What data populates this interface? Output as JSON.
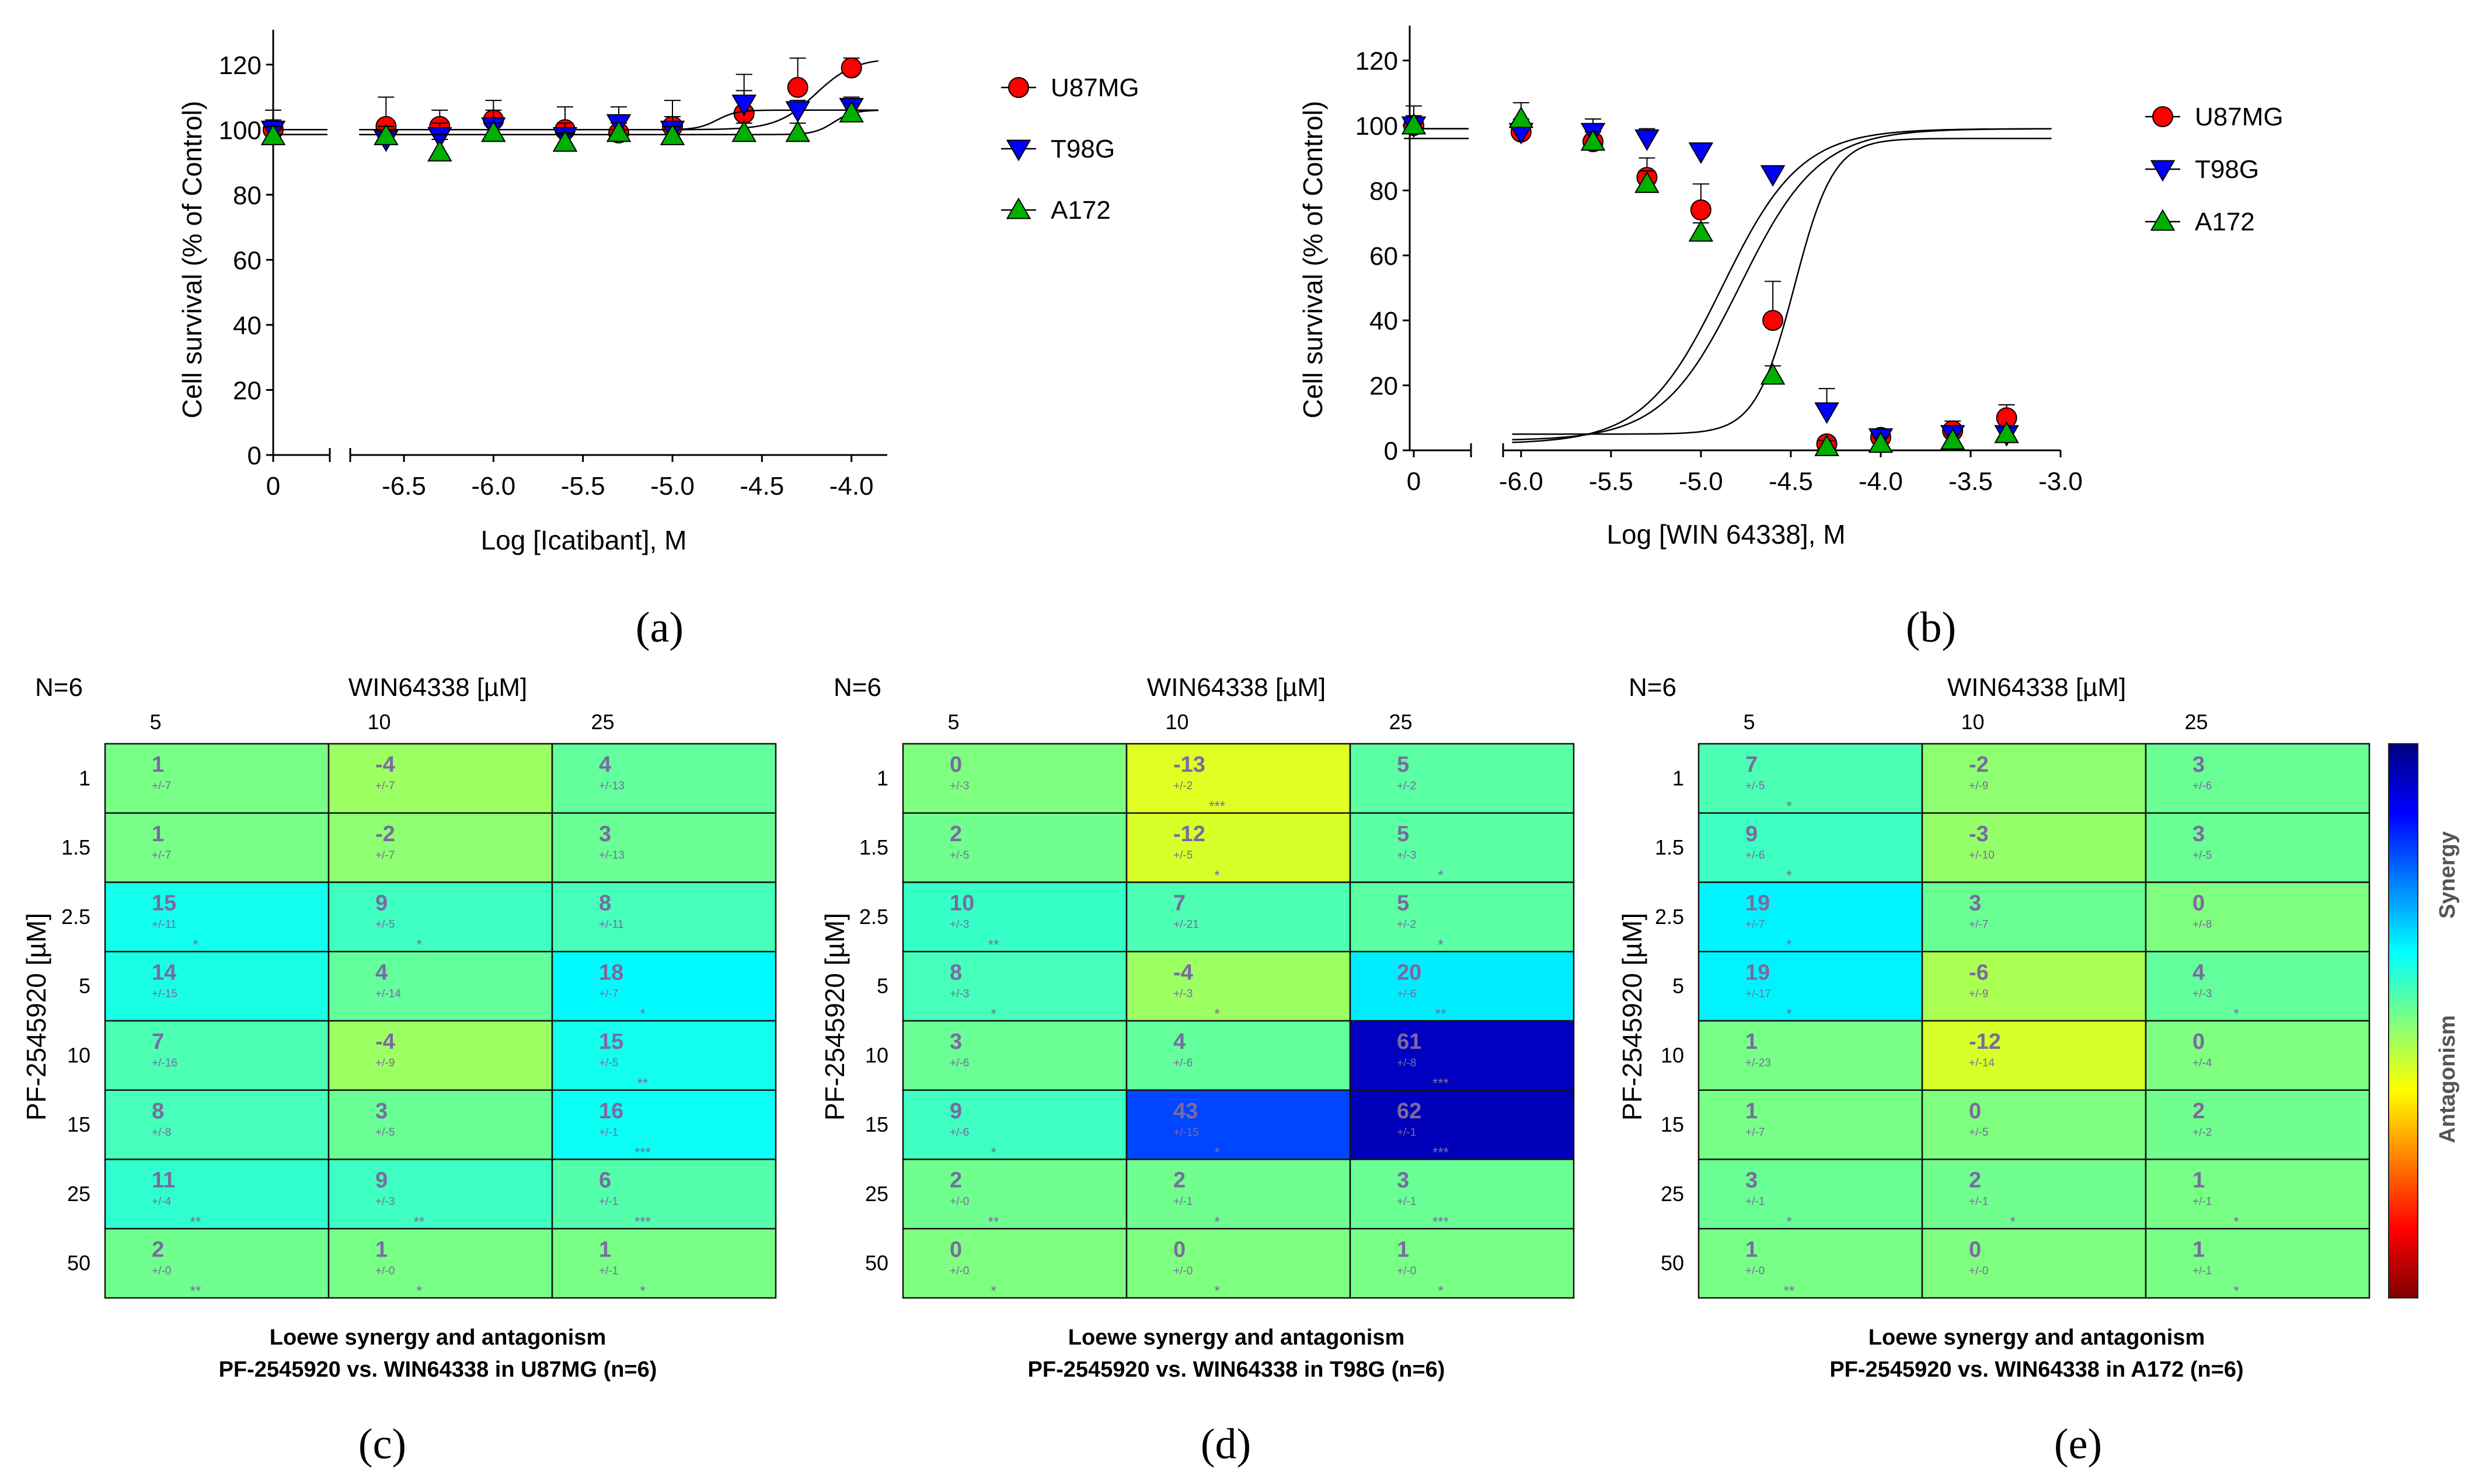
{
  "figure": {
    "panel_labels": [
      "(a)",
      "(b)",
      "(c)",
      "(d)",
      "(e)"
    ],
    "colors": {
      "U87MG": "#ff0000",
      "T98G": "#0000ff",
      "A172": "#00b000"
    }
  },
  "chart_data": [
    {
      "panel": "a",
      "type": "line",
      "title": "",
      "xlabel": "Log [Icatibant], M",
      "ylabel": "Cell survival (% of Control)",
      "ylim": [
        0,
        130
      ],
      "yticks": [
        0,
        20,
        40,
        60,
        80,
        100,
        120
      ],
      "xlim": [
        -6.8,
        -3.8
      ],
      "xticks": [
        -6.5,
        -6.0,
        -5.5,
        -5.0,
        -4.5,
        -4.0
      ],
      "xtick_labels": [
        "-6.5",
        "-6.0",
        "-5.5",
        "-5.0",
        "-4.5",
        "-4.0"
      ],
      "control_label": "0",
      "legend_position": "right",
      "series": [
        {
          "name": "U87MG",
          "marker": "circle",
          "control": 100,
          "control_err": 6,
          "x": [
            -6.6,
            -6.3,
            -6.0,
            -5.6,
            -5.3,
            -5.0,
            -4.6,
            -4.3,
            -4.0
          ],
          "y": [
            101,
            101,
            103,
            100,
            99,
            101,
            105,
            113,
            119
          ],
          "err": [
            9,
            5,
            6,
            7,
            4,
            8,
            12,
            9,
            3
          ],
          "fit": {
            "bottom": 100,
            "top": 122,
            "logec50": -4.2,
            "hill": 4
          }
        },
        {
          "name": "T98G",
          "marker": "triangle-down",
          "control": 100,
          "control_err": 3,
          "x": [
            -6.6,
            -6.3,
            -6.0,
            -5.6,
            -5.3,
            -5.0,
            -4.6,
            -4.3,
            -4.0
          ],
          "y": [
            97,
            98,
            101,
            98,
            102,
            100,
            108,
            106,
            107
          ],
          "err": [
            4,
            4,
            5,
            4,
            5,
            4,
            4,
            3,
            3
          ],
          "fit": {
            "bottom": 100,
            "top": 106,
            "logec50": -4.75,
            "hill": 8
          }
        },
        {
          "name": "A172",
          "marker": "triangle-up",
          "control": 98,
          "control_err": 3,
          "x": [
            -6.6,
            -6.3,
            -6.0,
            -5.6,
            -5.3,
            -5.0,
            -4.6,
            -4.3,
            -4.0
          ],
          "y": [
            98,
            93,
            99,
            96,
            99,
            98,
            99,
            99,
            105
          ],
          "err": [
            3,
            4,
            3,
            3,
            3,
            3,
            3,
            3,
            3
          ],
          "fit": {
            "bottom": 98.5,
            "top": 106,
            "logec50": -4.1,
            "hill": 8
          }
        }
      ]
    },
    {
      "panel": "b",
      "type": "line",
      "title": "",
      "xlabel": "Log [WIN 64338], M",
      "ylabel": "Cell survival (% of Control)",
      "ylim": [
        0,
        130
      ],
      "yticks": [
        0,
        20,
        40,
        60,
        80,
        100,
        120
      ],
      "xlim": [
        -6.1,
        -3.0
      ],
      "xticks": [
        -6.0,
        -5.5,
        -5.0,
        -4.5,
        -4.0,
        -3.5,
        -3.0
      ],
      "xtick_labels": [
        "-6.0",
        "-5.5",
        "-5.0",
        "-4.5",
        "-4.0",
        "-3.5",
        "-3.0"
      ],
      "control_label": "0",
      "legend_position": "right",
      "series": [
        {
          "name": "U87MG",
          "marker": "circle",
          "control": 100,
          "control_err": 6,
          "x": [
            -6.0,
            -5.6,
            -5.3,
            -5.0,
            -4.6,
            -4.3,
            -4.0,
            -3.6,
            -3.3
          ],
          "y": [
            98,
            95,
            84,
            74,
            40,
            2,
            4,
            6,
            10
          ],
          "err": [
            4,
            5,
            6,
            8,
            12,
            2,
            2,
            3,
            4
          ],
          "fit": {
            "bottom": 3,
            "top": 99,
            "logec50": -4.78,
            "hill": 2
          }
        },
        {
          "name": "T98G",
          "marker": "triangle-down",
          "control": 100,
          "control_err": 2,
          "x": [
            -6.0,
            -5.6,
            -5.3,
            -5.0,
            -4.6,
            -4.3,
            -4.0,
            -3.6,
            -3.3
          ],
          "y": [
            98,
            98,
            96,
            92,
            85,
            12,
            4,
            5,
            5
          ],
          "err": [
            3,
            4,
            3,
            2,
            2,
            7,
            2,
            2,
            2
          ],
          "fit": {
            "bottom": 5,
            "top": 96,
            "logec50": -4.48,
            "hill": 4
          }
        },
        {
          "name": "A172",
          "marker": "triangle-up",
          "control": 100,
          "control_err": 3,
          "x": [
            -6.0,
            -5.6,
            -5.3,
            -5.0,
            -4.6,
            -4.3,
            -4.0,
            -3.6,
            -3.3
          ],
          "y": [
            102,
            95,
            82,
            67,
            23,
            1,
            2,
            3,
            5
          ],
          "err": [
            5,
            3,
            4,
            3,
            3,
            2,
            2,
            2,
            2
          ],
          "fit": {
            "bottom": 2,
            "top": 99,
            "logec50": -4.88,
            "hill": 2
          }
        }
      ]
    },
    {
      "panel": "c",
      "type": "heatmap",
      "n_label": "N=6",
      "col_title": "WIN64338 [µM]",
      "row_title": "PF-2545920 [µM]",
      "cols": [
        "5",
        "10",
        "25"
      ],
      "rows": [
        "1",
        "1.5",
        "2.5",
        "5",
        "10",
        "15",
        "25",
        "50"
      ],
      "caption": [
        "Loewe synergy and antagonism",
        "PF-2545920 vs. WIN64338 in U87MG (n=6)"
      ],
      "values": [
        [
          1,
          -4,
          4
        ],
        [
          1,
          -2,
          3
        ],
        [
          15,
          9,
          8
        ],
        [
          14,
          4,
          18
        ],
        [
          7,
          -4,
          15
        ],
        [
          8,
          3,
          16
        ],
        [
          11,
          9,
          6
        ],
        [
          2,
          1,
          1
        ]
      ],
      "sd": [
        [
          "+/-7",
          "+/-7",
          "+/-13"
        ],
        [
          "+/-7",
          "+/-7",
          "+/-13"
        ],
        [
          "+/-11",
          "+/-5",
          "+/-11"
        ],
        [
          "+/-15",
          "+/-14",
          "+/-7"
        ],
        [
          "+/-16",
          "+/-9",
          "+/-5"
        ],
        [
          "+/-8",
          "+/-5",
          "+/-1"
        ],
        [
          "+/-4",
          "+/-3",
          "+/-1"
        ],
        [
          "+/-0",
          "+/-0",
          "+/-1"
        ]
      ],
      "sig": [
        [
          "",
          "",
          ""
        ],
        [
          "",
          "",
          ""
        ],
        [
          "*",
          "*",
          ""
        ],
        [
          "",
          "",
          "*"
        ],
        [
          "",
          "",
          "**"
        ],
        [
          "",
          "",
          "***"
        ],
        [
          "**",
          "**",
          "***"
        ],
        [
          "**",
          "*",
          "*"
        ]
      ]
    },
    {
      "panel": "d",
      "type": "heatmap",
      "n_label": "N=6",
      "col_title": "WIN64338 [µM]",
      "row_title": "PF-2545920 [µM]",
      "cols": [
        "5",
        "10",
        "25"
      ],
      "rows": [
        "1",
        "1.5",
        "2.5",
        "5",
        "10",
        "15",
        "25",
        "50"
      ],
      "caption": [
        "Loewe synergy and antagonism",
        "PF-2545920 vs. WIN64338 in T98G (n=6)"
      ],
      "values": [
        [
          0,
          -13,
          5
        ],
        [
          2,
          -12,
          5
        ],
        [
          10,
          7,
          5
        ],
        [
          8,
          -4,
          20
        ],
        [
          3,
          4,
          61
        ],
        [
          9,
          43,
          62
        ],
        [
          2,
          2,
          3
        ],
        [
          0,
          0,
          1
        ]
      ],
      "sd": [
        [
          "+/-3",
          "+/-2",
          "+/-2"
        ],
        [
          "+/-5",
          "+/-5",
          "+/-3"
        ],
        [
          "+/-3",
          "+/-21",
          "+/-2"
        ],
        [
          "+/-3",
          "+/-3",
          "+/-6"
        ],
        [
          "+/-6",
          "+/-6",
          "+/-8"
        ],
        [
          "+/-6",
          "+/-15",
          "+/-1"
        ],
        [
          "+/-0",
          "+/-1",
          "+/-1"
        ],
        [
          "+/-0",
          "+/-0",
          "+/-0"
        ]
      ],
      "sig": [
        [
          "",
          "***",
          ""
        ],
        [
          "",
          "*",
          "*"
        ],
        [
          "**",
          "",
          "*"
        ],
        [
          "*",
          "*",
          "**"
        ],
        [
          "",
          "",
          "***"
        ],
        [
          "*",
          "*",
          "***"
        ],
        [
          "**",
          "*",
          "***"
        ],
        [
          "*",
          "*",
          "*"
        ]
      ]
    },
    {
      "panel": "e",
      "type": "heatmap",
      "n_label": "N=6",
      "col_title": "WIN64338 [µM]",
      "row_title": "PF-2545920 [µM]",
      "cols": [
        "5",
        "10",
        "25"
      ],
      "rows": [
        "1",
        "1.5",
        "2.5",
        "5",
        "10",
        "15",
        "25",
        "50"
      ],
      "caption": [
        "Loewe synergy and antagonism",
        "PF-2545920 vs. WIN64338 in A172 (n=6)"
      ],
      "values": [
        [
          7,
          -2,
          3
        ],
        [
          9,
          -3,
          3
        ],
        [
          19,
          3,
          0
        ],
        [
          19,
          -6,
          4
        ],
        [
          1,
          -12,
          0
        ],
        [
          1,
          0,
          2
        ],
        [
          3,
          2,
          1
        ],
        [
          1,
          0,
          1
        ]
      ],
      "sd": [
        [
          "+/-5",
          "+/-9",
          "+/-6"
        ],
        [
          "+/-6",
          "+/-10",
          "+/-5"
        ],
        [
          "+/-7",
          "+/-7",
          "+/-8"
        ],
        [
          "+/-17",
          "+/-9",
          "+/-3"
        ],
        [
          "+/-23",
          "+/-14",
          "+/-4"
        ],
        [
          "+/-7",
          "+/-5",
          "+/-2"
        ],
        [
          "+/-1",
          "+/-1",
          "+/-1"
        ],
        [
          "+/-0",
          "+/-0",
          "+/-1"
        ]
      ],
      "sig": [
        [
          "*",
          "",
          ""
        ],
        [
          "*",
          "",
          ""
        ],
        [
          "*",
          "",
          ""
        ],
        [
          "*",
          "",
          "*"
        ],
        [
          "",
          "",
          ""
        ],
        [
          "",
          "",
          ""
        ],
        [
          "*",
          "*",
          "*"
        ],
        [
          "**",
          "",
          "*"
        ]
      ],
      "colorbar": {
        "labels": [
          "Synergy",
          "Antagonism"
        ],
        "range": [
          -70,
          70
        ]
      }
    }
  ]
}
